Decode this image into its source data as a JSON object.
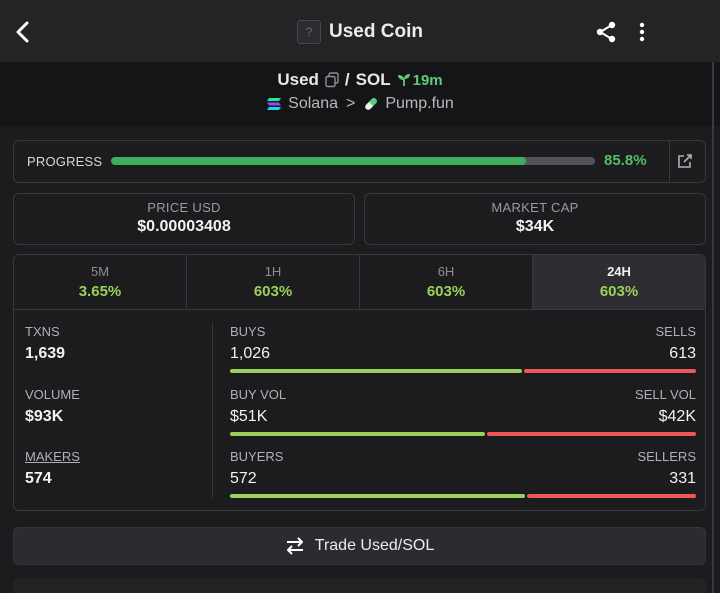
{
  "header": {
    "title": "Used Coin",
    "token_placeholder": "?"
  },
  "pair": {
    "base": "Used",
    "separator": "/",
    "quote": "SOL",
    "age": "19m",
    "chain": "Solana",
    "chevron": ">",
    "dex": "Pump.fun"
  },
  "progress": {
    "label": "PROGRESS",
    "value": "85.8%",
    "fraction": 0.858
  },
  "stats": {
    "price_label": "PRICE USD",
    "price_value": "$0.00003408",
    "mcap_label": "MARKET CAP",
    "mcap_value": "$34K"
  },
  "tabs": [
    {
      "label": "5M",
      "value": "3.65%"
    },
    {
      "label": "1H",
      "value": "603%"
    },
    {
      "label": "6H",
      "value": "603%"
    },
    {
      "label": "24H",
      "value": "603%",
      "active": true
    }
  ],
  "left": {
    "txns_label": "TXNS",
    "txns_value": "1,639",
    "volume_label": "VOLUME",
    "volume_value": "$93K",
    "makers_label": "MAKERS",
    "makers_value": "574"
  },
  "ratios": {
    "txns": {
      "left_label": "BUYS",
      "left_value": "1,026",
      "right_label": "SELLS",
      "right_value": "613",
      "left_fraction": 0.626
    },
    "volume": {
      "left_label": "BUY VOL",
      "left_value": "$51K",
      "right_label": "SELL VOL",
      "right_value": "$42K",
      "left_fraction": 0.548
    },
    "makers": {
      "left_label": "BUYERS",
      "left_value": "572",
      "right_label": "SELLERS",
      "right_value": "331",
      "left_fraction": 0.633
    }
  },
  "trade_button": {
    "label": "Trade Used/SOL"
  },
  "colors": {
    "accent_green": "#4fbf6a",
    "buy_green": "#9bd05a",
    "sell_red": "#ee5757",
    "background": "#1c1c1f"
  },
  "icons": [
    "back-arrow-icon",
    "share-icon",
    "more-vertical-icon",
    "copy-icon",
    "sprout-icon",
    "solana-icon",
    "pill-icon",
    "external-link-icon",
    "swap-arrows-icon"
  ]
}
